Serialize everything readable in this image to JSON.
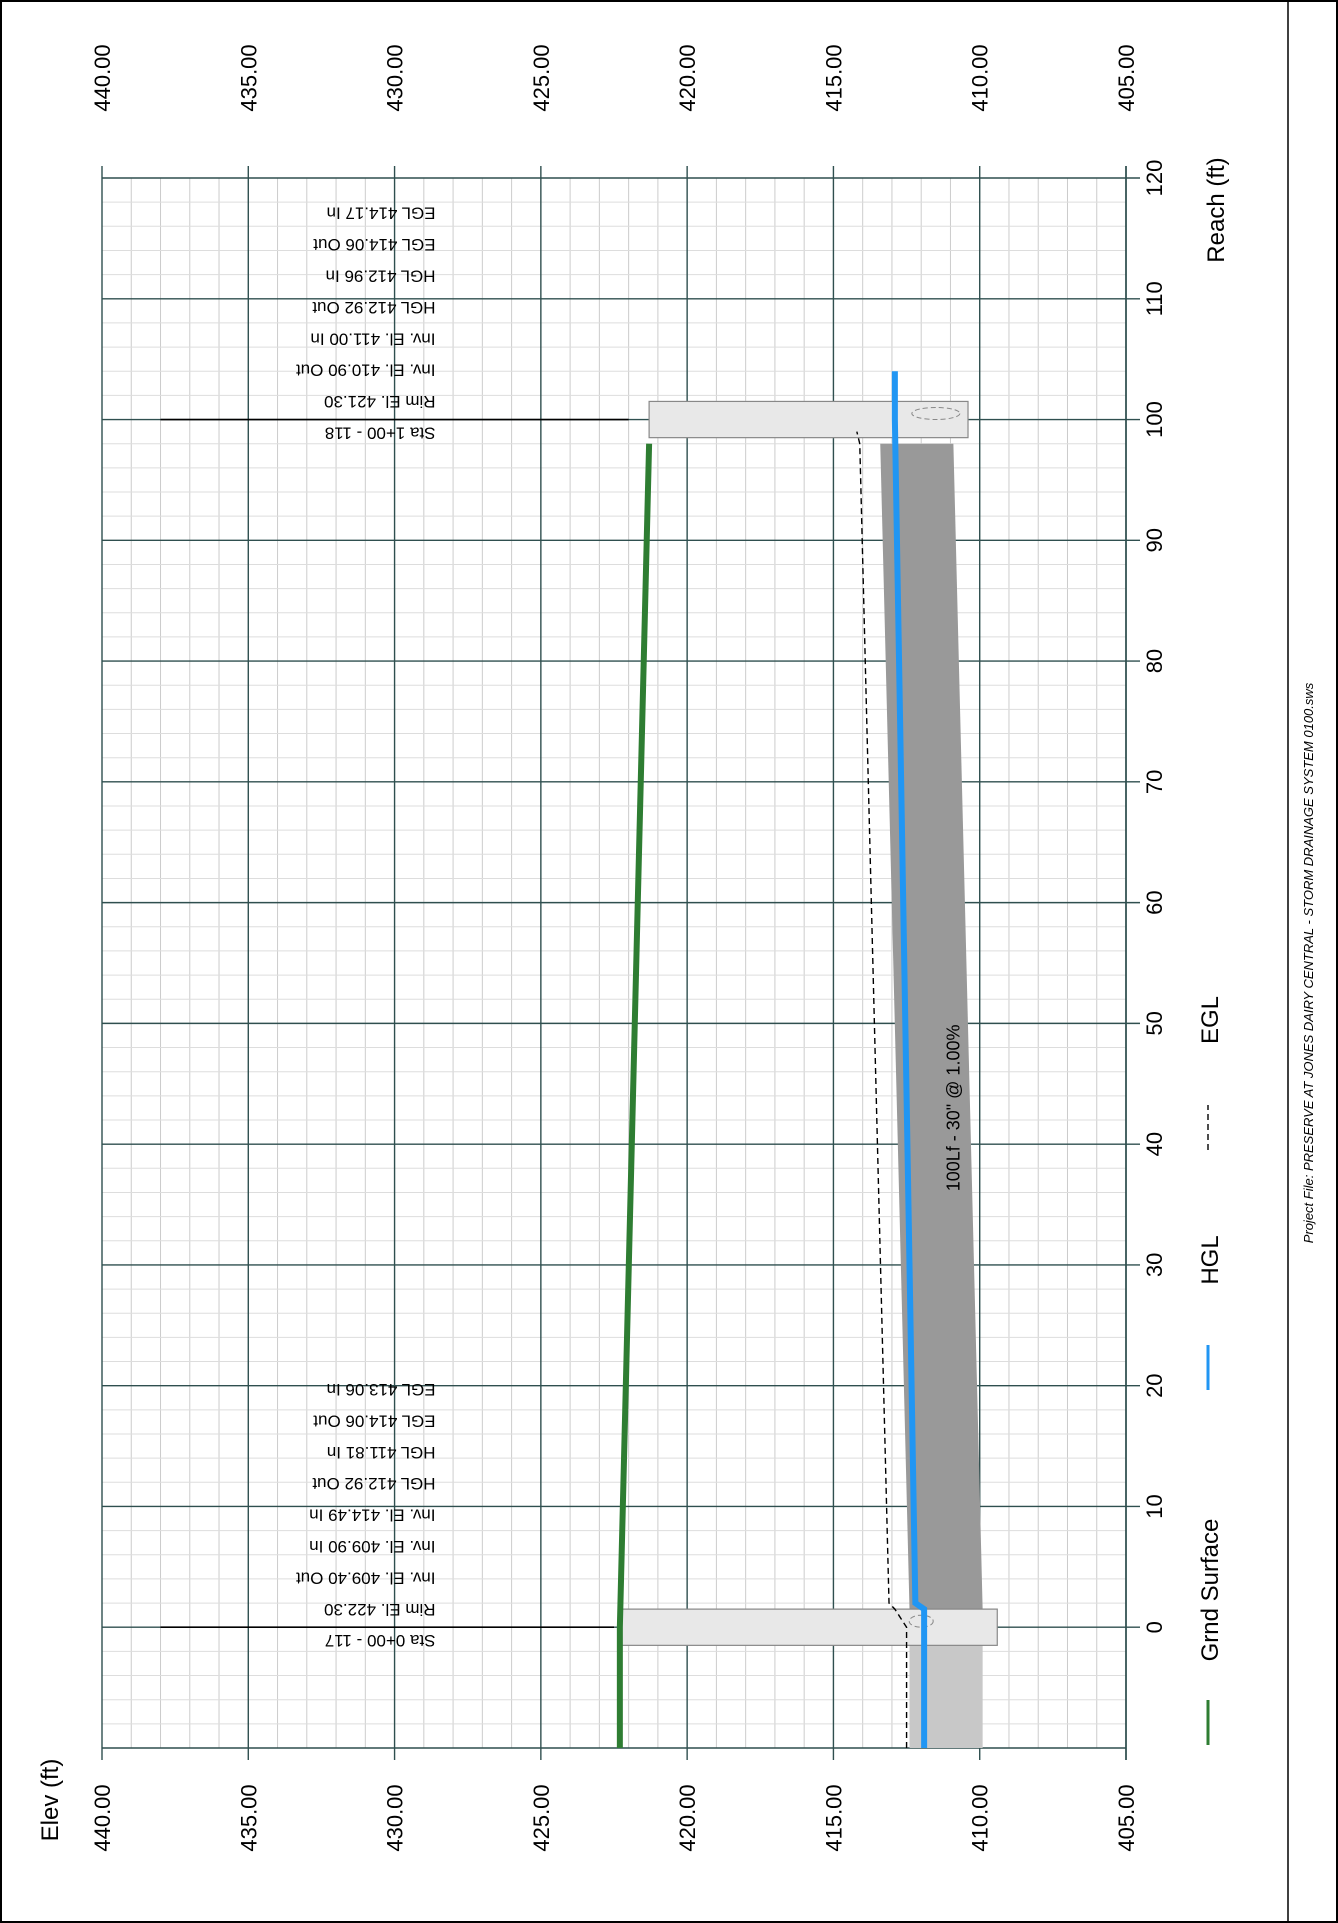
{
  "chart_data": {
    "type": "line",
    "orientation": "rotated-90-clockwise",
    "xlabel": "Reach (ft)",
    "ylabel": "Elev (ft)",
    "xlim": [
      -10,
      120
    ],
    "ylim": [
      405,
      440
    ],
    "x_ticks": [
      0,
      10,
      20,
      30,
      40,
      50,
      60,
      70,
      80,
      90,
      100,
      110,
      120
    ],
    "y_tick_labels": [
      "405.00",
      "410.00",
      "415.00",
      "420.00",
      "425.00",
      "430.00",
      "435.00",
      "440.00"
    ],
    "grid": true,
    "legend_placement": "bottom",
    "series": [
      {
        "name": "Grnd Surface",
        "color": "#2e7d32",
        "style": "solid",
        "x": [
          -10,
          0,
          98
        ],
        "y": [
          422.3,
          422.3,
          421.3
        ]
      },
      {
        "name": "HGL",
        "color": "#2196f3",
        "style": "solid",
        "x": [
          -10,
          0,
          1.5,
          2,
          100,
          104
        ],
        "y": [
          411.9,
          411.9,
          411.9,
          412.2,
          412.9,
          412.9
        ]
      },
      {
        "name": "EGL",
        "color": "#000000",
        "style": "dashed",
        "x": [
          -10,
          0,
          1.5,
          2,
          98,
          99
        ],
        "y": [
          412.5,
          412.5,
          412.9,
          413.1,
          414.1,
          414.2
        ]
      }
    ],
    "pipe": {
      "label": "100Lf - 30\" @ 1.00%",
      "length": 100,
      "diameter_ft": 2.5,
      "slope": 0.01,
      "invert_start": 409.9,
      "invert_end": 410.9,
      "color": "#999999"
    },
    "structures": [
      {
        "station": 0,
        "lines": [
          "Sta 0+00 - 117",
          "Rim El. 422.30",
          "Inv. El. 409.40 Out",
          "Inv. El. 409.90 In",
          "Inv. El. 414.49 In",
          "HGL 412.92 Out",
          "HGL 411.81 In",
          "EGL 414.06 Out",
          "EGL 413.06 In"
        ]
      },
      {
        "station": 100,
        "lines": [
          "Sta 1+00 - 118",
          "Rim El. 421.30",
          "Inv. El. 410.90 Out",
          "Inv. El. 411.00 In",
          "HGL 412.92 Out",
          "HGL 412.96 In",
          "EGL 414.06 Out",
          "EGL 414.17 In"
        ]
      }
    ]
  },
  "footer": {
    "project_file": "Project File: PRESERVE AT JONES DAIRY CENTRAL - STORM DRAINAGE SYSTEM 0100.sws"
  }
}
